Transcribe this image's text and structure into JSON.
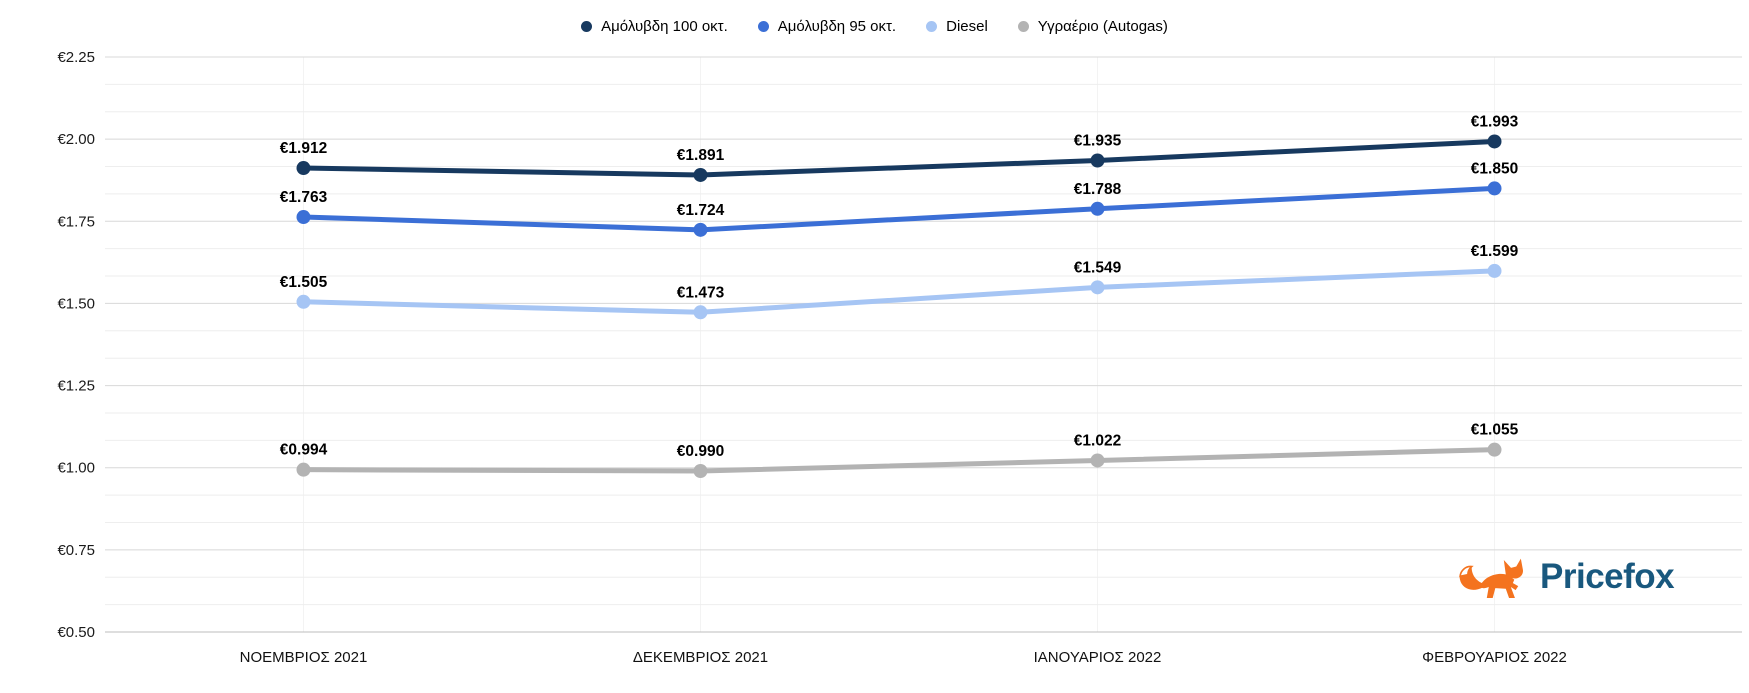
{
  "chart_data": {
    "type": "line",
    "categories": [
      "ΝΟΕΜΒΡΙΟΣ 2021",
      "ΔΕΚΕΜΒΡΙΟΣ 2021",
      "ΙΑΝΟΥΑΡΙΟΣ 2022",
      "ΦΕΒΡΟΥΑΡΙΟΣ 2022"
    ],
    "series": [
      {
        "name": "Αμόλυβδη 100 οκτ.",
        "color": "#17395f",
        "values": [
          1.912,
          1.891,
          1.935,
          1.993
        ]
      },
      {
        "name": "Αμόλυβδη 95 οκτ.",
        "color": "#3b6fd6",
        "values": [
          1.763,
          1.724,
          1.788,
          1.85
        ]
      },
      {
        "name": "Diesel",
        "color": "#a6c5f4",
        "values": [
          1.505,
          1.473,
          1.549,
          1.599
        ]
      },
      {
        "name": "Υγραέριο (Autogas)",
        "color": "#b3b3b3",
        "values": [
          0.994,
          0.99,
          1.022,
          1.055
        ]
      }
    ],
    "y_axis": {
      "min": 0.5,
      "max": 2.25,
      "tick_step": 0.25,
      "tick_labels": [
        "€0.50",
        "€0.75",
        "€1.00",
        "€1.25",
        "€1.50",
        "€1.75",
        "€2.00",
        "€2.25"
      ],
      "minor_divisions_per_major": 3,
      "value_prefix": "€",
      "value_decimals": 3
    },
    "legend_position": "top",
    "grid": true,
    "title": "",
    "xlabel": "",
    "ylabel": ""
  },
  "branding": {
    "logo_text": "Pricefox",
    "logo_text_color": "#19587e",
    "fox_color": "#f4731f"
  }
}
